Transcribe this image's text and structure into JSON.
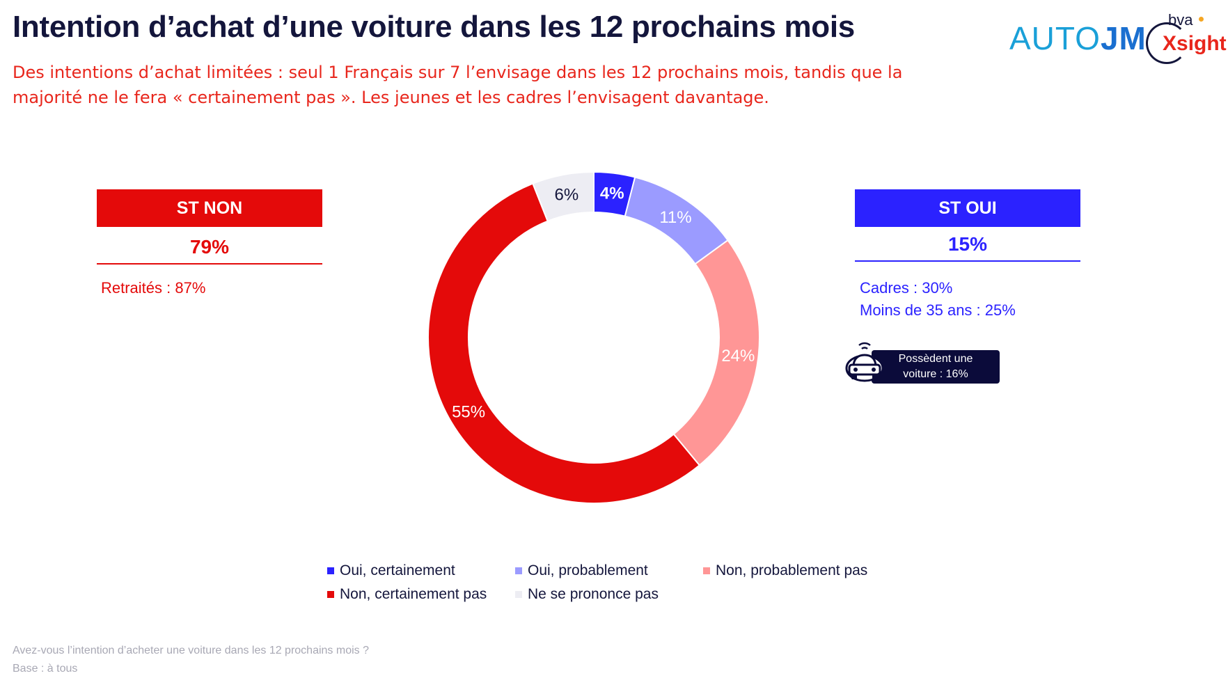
{
  "header": {
    "title": "Intention d’achat d’une voiture dans les 12 prochains mois",
    "subtitle": "Des intentions d’achat limitées : seul 1 Français sur 7 l’envisage dans les 12 prochains mois, tandis que la majorité ne le fera « certainement pas ». Les jeunes et les cadres l’envisagent davantage.",
    "logo_autojm_part1": "AUTO",
    "logo_autojm_part2": "JM",
    "logo_bva_small": "bva",
    "logo_bva_main": "Xsight"
  },
  "st_non": {
    "label": "ST NON",
    "value": "79%",
    "details": [
      "Retraités : 87%"
    ]
  },
  "st_oui": {
    "label": "ST OUI",
    "value": "15%",
    "details": [
      "Cadres : 30%",
      "Moins de 35 ans : 25%"
    ]
  },
  "car_badge": {
    "line1": "Possèdent une",
    "line2": "voiture : 16%",
    "icon": "car-icon"
  },
  "chart_data": {
    "type": "pie",
    "donut": true,
    "categories": [
      "Oui, certainement",
      "Oui, probablement",
      "Non, probablement pas",
      "Non, certainement pas",
      "Ne se prononce pas"
    ],
    "values": [
      4,
      11,
      24,
      55,
      6
    ],
    "labels": [
      "4%",
      "11%",
      "24%",
      "55%",
      "6%"
    ],
    "colors": [
      "#2b22ff",
      "#9b9bff",
      "#ff9696",
      "#e40a0a",
      "#ededf3"
    ],
    "label_colors": [
      "#ffffff",
      "#ffffff",
      "#ffffff",
      "#ffffff",
      "#14163c"
    ],
    "legend_position": "bottom"
  },
  "footer": {
    "question": "Avez-vous l’intention d’acheter une voiture dans les 12 prochains mois ?",
    "base": "Base : à tous"
  }
}
